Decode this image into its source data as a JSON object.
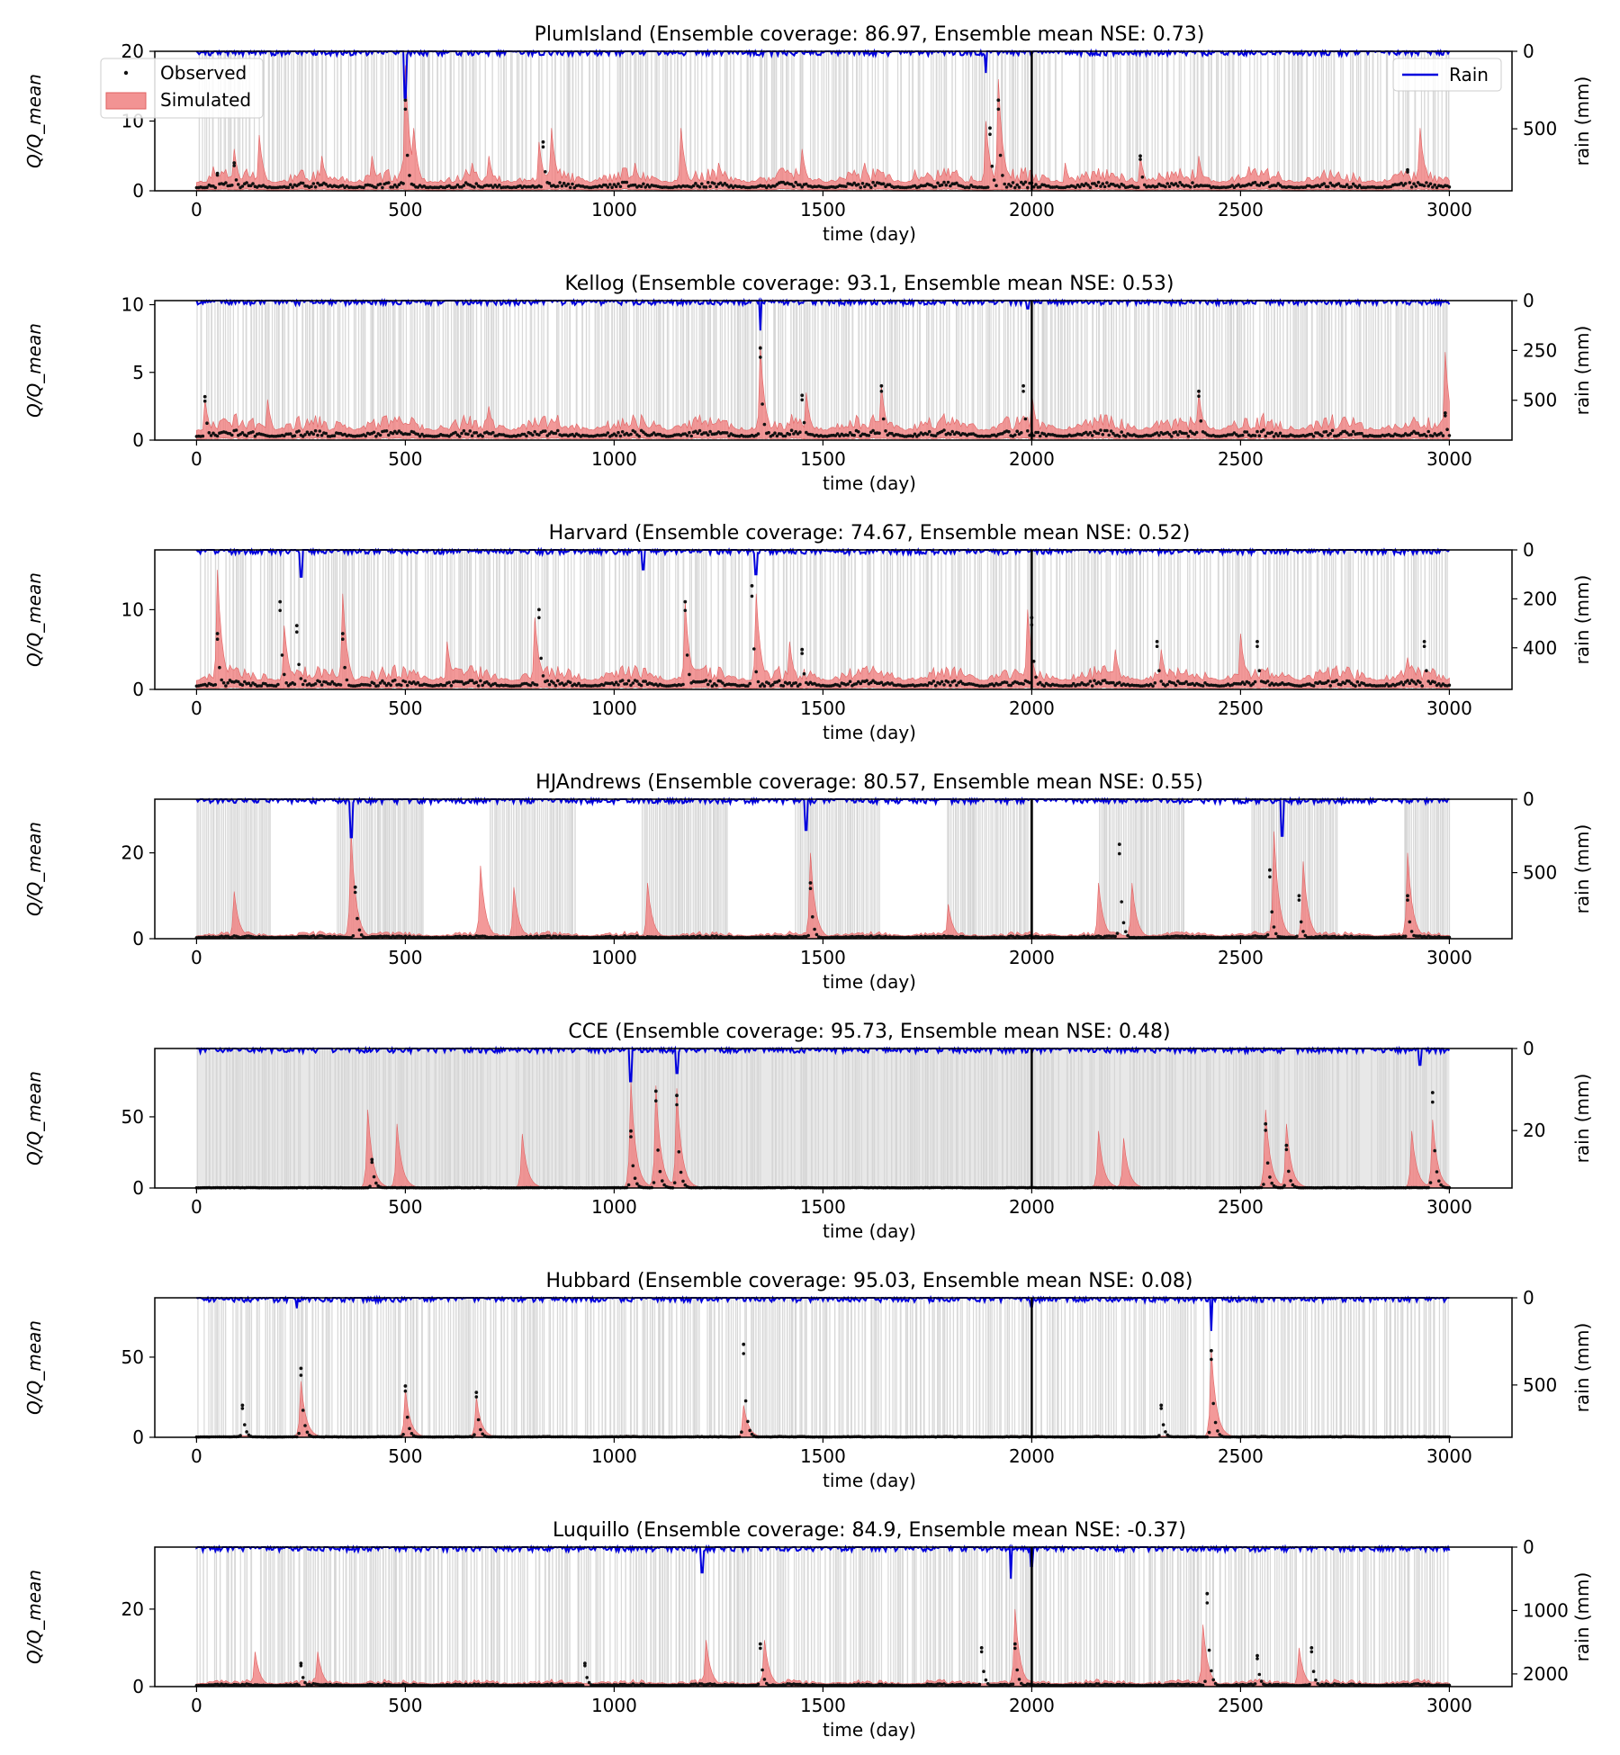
{
  "chart_data": [
    {
      "type": "line",
      "site": "PlumIsland",
      "title": "PlumIsland (Ensemble coverage: 86.97, Ensemble mean NSE: 0.73)",
      "xlabel": "time (day)",
      "ylabel": "Q/Q_mean",
      "ylabel2": "rain (mm)",
      "xlim": [
        -100,
        3150
      ],
      "xticks": [
        0,
        500,
        1000,
        1500,
        2000,
        2500,
        3000
      ],
      "ylim": [
        0,
        20
      ],
      "yticks": [
        0,
        10,
        20
      ],
      "y2lim_inverted": [
        0,
        900
      ],
      "y2ticks": [
        0,
        500
      ],
      "split_day": 2000,
      "legend": {
        "left": [
          "Observed",
          "Simulated"
        ],
        "right": [
          "Rain"
        ],
        "left_position": "upper left",
        "right_position": "upper right"
      },
      "grid": false,
      "flow_scale": 1.5,
      "sim_peaks": [
        [
          40,
          3.5
        ],
        [
          90,
          6
        ],
        [
          150,
          8
        ],
        [
          300,
          5
        ],
        [
          420,
          5
        ],
        [
          500,
          18
        ],
        [
          520,
          9
        ],
        [
          660,
          4
        ],
        [
          700,
          5
        ],
        [
          820,
          7
        ],
        [
          850,
          9
        ],
        [
          1050,
          4
        ],
        [
          1160,
          9
        ],
        [
          1250,
          4
        ],
        [
          1450,
          6
        ],
        [
          1600,
          4
        ],
        [
          1720,
          3
        ],
        [
          1890,
          10
        ],
        [
          1920,
          16
        ],
        [
          2080,
          4
        ],
        [
          2260,
          5
        ],
        [
          2400,
          5
        ],
        [
          2520,
          3.5
        ],
        [
          2700,
          3
        ],
        [
          2930,
          9
        ]
      ],
      "obs_peaks": [
        [
          50,
          2.5
        ],
        [
          90,
          4
        ],
        [
          500,
          13
        ],
        [
          830,
          7
        ],
        [
          1900,
          9
        ],
        [
          1920,
          13
        ],
        [
          2260,
          5
        ],
        [
          2900,
          3
        ]
      ],
      "rain_max": 900,
      "rain_peaks": [
        [
          500,
          300
        ],
        [
          1890,
          140
        ]
      ],
      "wet_fraction": 0.55
    },
    {
      "type": "line",
      "site": "Kellog",
      "title": "Kellog (Ensemble coverage: 93.1, Ensemble mean NSE: 0.53)",
      "xlabel": "time (day)",
      "ylabel": "Q/Q_mean",
      "ylabel2": "rain (mm)",
      "xlim": [
        -100,
        3150
      ],
      "xticks": [
        0,
        500,
        1000,
        1500,
        2000,
        2500,
        3000
      ],
      "ylim": [
        0,
        10.3
      ],
      "yticks": [
        0,
        5,
        10
      ],
      "y2lim_inverted": [
        0,
        700
      ],
      "y2ticks": [
        0,
        250,
        500
      ],
      "split_day": 2000,
      "flow_scale": 0.9,
      "sim_peaks": [
        [
          20,
          3
        ],
        [
          170,
          3
        ],
        [
          700,
          2.5
        ],
        [
          1350,
          7
        ],
        [
          1460,
          3.5
        ],
        [
          1640,
          4
        ],
        [
          2000,
          3.5
        ],
        [
          2400,
          3.5
        ],
        [
          2990,
          6.5
        ]
      ],
      "obs_peaks": [
        [
          20,
          3.2
        ],
        [
          1350,
          6.8
        ],
        [
          1450,
          3.3
        ],
        [
          1640,
          4
        ],
        [
          1980,
          4
        ],
        [
          2400,
          3.6
        ],
        [
          2990,
          2
        ]
      ],
      "rain_max": 700,
      "rain_peaks": [
        [
          1350,
          150
        ],
        [
          1990,
          40
        ]
      ],
      "wet_fraction": 0.72
    },
    {
      "type": "line",
      "site": "Harvard",
      "title": "Harvard (Ensemble coverage: 74.67, Ensemble mean NSE: 0.52)",
      "xlabel": "time (day)",
      "ylabel": "Q/Q_mean",
      "ylabel2": "rain (mm)",
      "xlim": [
        -100,
        3150
      ],
      "xticks": [
        0,
        500,
        1000,
        1500,
        2000,
        2500,
        3000
      ],
      "ylim": [
        0,
        17.5
      ],
      "yticks": [
        0,
        10
      ],
      "y2lim_inverted": [
        0,
        570
      ],
      "y2ticks": [
        0,
        200,
        400
      ],
      "split_day": 2000,
      "flow_scale": 1.4,
      "sim_peaks": [
        [
          50,
          15
        ],
        [
          210,
          8
        ],
        [
          350,
          12
        ],
        [
          600,
          6
        ],
        [
          810,
          9
        ],
        [
          1170,
          11
        ],
        [
          1340,
          12
        ],
        [
          1420,
          6
        ],
        [
          1990,
          10
        ],
        [
          2200,
          5
        ],
        [
          2310,
          5
        ],
        [
          2500,
          7
        ],
        [
          2900,
          4
        ]
      ],
      "obs_peaks": [
        [
          50,
          7
        ],
        [
          200,
          11
        ],
        [
          240,
          8
        ],
        [
          350,
          7
        ],
        [
          820,
          10
        ],
        [
          1170,
          11
        ],
        [
          1330,
          13
        ],
        [
          1450,
          5
        ],
        [
          2000,
          9
        ],
        [
          2300,
          6
        ],
        [
          2540,
          6
        ],
        [
          2940,
          6
        ]
      ],
      "rain_max": 570,
      "rain_peaks": [
        [
          250,
          110
        ],
        [
          1340,
          100
        ],
        [
          1070,
          80
        ]
      ],
      "wet_fraction": 0.6
    },
    {
      "type": "line",
      "site": "HJAndrews",
      "title": "HJAndrews (Ensemble coverage: 80.57, Ensemble mean NSE: 0.55)",
      "xlabel": "time (day)",
      "ylabel": "Q/Q_mean",
      "ylabel2": "rain (mm)",
      "xlim": [
        -100,
        3150
      ],
      "xticks": [
        0,
        500,
        1000,
        1500,
        2000,
        2500,
        3000
      ],
      "ylim": [
        0,
        32.5
      ],
      "yticks": [
        0,
        20
      ],
      "y2lim_inverted": [
        0,
        950
      ],
      "y2ticks": [
        0,
        500
      ],
      "split_day": 2000,
      "flow_scale": 0.8,
      "sim_peaks": [
        [
          90,
          11
        ],
        [
          370,
          25
        ],
        [
          680,
          17
        ],
        [
          760,
          12
        ],
        [
          1080,
          13
        ],
        [
          1470,
          20
        ],
        [
          1800,
          8
        ],
        [
          2160,
          13
        ],
        [
          2240,
          13
        ],
        [
          2580,
          25
        ],
        [
          2650,
          18
        ],
        [
          2900,
          20
        ]
      ],
      "obs_peaks": [
        [
          380,
          12
        ],
        [
          1470,
          13
        ],
        [
          2210,
          22
        ],
        [
          2570,
          16
        ],
        [
          2640,
          10
        ],
        [
          2900,
          10
        ]
      ],
      "rain_max": 950,
      "rain_peaks": [
        [
          370,
          260
        ],
        [
          1460,
          210
        ],
        [
          2600,
          250
        ]
      ],
      "wet_fraction": 0.4,
      "seasonal": true
    },
    {
      "type": "line",
      "site": "CCE",
      "title": "CCE (Ensemble coverage: 95.73, Ensemble mean NSE: 0.48)",
      "xlabel": "time (day)",
      "ylabel": "Q/Q_mean",
      "ylabel2": "rain (mm)",
      "xlim": [
        -100,
        3150
      ],
      "xticks": [
        0,
        500,
        1000,
        1500,
        2000,
        2500,
        3000
      ],
      "ylim": [
        0,
        98
      ],
      "yticks": [
        0,
        50
      ],
      "y2lim_inverted": [
        0,
        34
      ],
      "y2ticks": [
        0,
        20
      ],
      "split_day": 2000,
      "flow_scale": 0.4,
      "sim_peaks": [
        [
          410,
          55
        ],
        [
          480,
          45
        ],
        [
          780,
          38
        ],
        [
          1040,
          75
        ],
        [
          1100,
          72
        ],
        [
          1150,
          70
        ],
        [
          2160,
          40
        ],
        [
          2220,
          35
        ],
        [
          2560,
          55
        ],
        [
          2610,
          45
        ],
        [
          2910,
          40
        ],
        [
          2960,
          48
        ]
      ],
      "obs_peaks": [
        [
          420,
          20
        ],
        [
          1040,
          40
        ],
        [
          1100,
          68
        ],
        [
          1150,
          65
        ],
        [
          2560,
          45
        ],
        [
          2610,
          30
        ],
        [
          2960,
          67
        ]
      ],
      "rain_max": 34,
      "rain_peaks": [
        [
          1040,
          8
        ],
        [
          1150,
          6
        ],
        [
          2930,
          4
        ]
      ],
      "wet_fraction": 0.55
    },
    {
      "type": "line",
      "site": "Hubbard",
      "title": "Hubbard (Ensemble coverage: 95.03, Ensemble mean NSE: 0.08)",
      "xlabel": "time (day)",
      "ylabel": "Q/Q_mean",
      "ylabel2": "rain (mm)",
      "xlim": [
        -100,
        3150
      ],
      "xticks": [
        0,
        500,
        1000,
        1500,
        2000,
        2500,
        3000
      ],
      "ylim": [
        0,
        87
      ],
      "yticks": [
        0,
        50
      ],
      "y2lim_inverted": [
        0,
        800
      ],
      "y2ticks": [
        0,
        500
      ],
      "split_day": 2000,
      "flow_scale": 0.6,
      "sim_peaks": [
        [
          250,
          35
        ],
        [
          500,
          30
        ],
        [
          670,
          25
        ],
        [
          1310,
          20
        ],
        [
          2430,
          55
        ]
      ],
      "obs_peaks": [
        [
          110,
          20
        ],
        [
          250,
          43
        ],
        [
          500,
          32
        ],
        [
          670,
          28
        ],
        [
          1310,
          58
        ],
        [
          2430,
          54
        ],
        [
          2310,
          20
        ]
      ],
      "rain_max": 800,
      "rain_peaks": [
        [
          2430,
          190
        ],
        [
          240,
          60
        ],
        [
          2000,
          50
        ]
      ],
      "wet_fraction": 0.7
    },
    {
      "type": "line",
      "site": "Luquillo",
      "title": "Luquillo (Ensemble coverage: 84.9, Ensemble mean NSE: -0.37)",
      "xlabel": "time (day)",
      "ylabel": "Q/Q_mean",
      "ylabel2": "rain (mm)",
      "xlim": [
        -100,
        3150
      ],
      "xticks": [
        0,
        500,
        1000,
        1500,
        2000,
        2500,
        3000
      ],
      "ylim": [
        0,
        36
      ],
      "yticks": [
        0,
        20
      ],
      "y2lim_inverted": [
        0,
        2200
      ],
      "y2ticks": [
        0,
        1000,
        2000
      ],
      "split_day": 2000,
      "flow_scale": 0.9,
      "sim_peaks": [
        [
          140,
          9
        ],
        [
          290,
          9
        ],
        [
          1220,
          12
        ],
        [
          1360,
          12
        ],
        [
          1960,
          20
        ],
        [
          2410,
          16
        ],
        [
          2640,
          10
        ]
      ],
      "obs_peaks": [
        [
          250,
          6
        ],
        [
          930,
          6
        ],
        [
          1350,
          11
        ],
        [
          1880,
          10
        ],
        [
          1960,
          11
        ],
        [
          2420,
          24
        ],
        [
          2540,
          8
        ],
        [
          2670,
          10
        ]
      ],
      "rain_max": 2200,
      "rain_peaks": [
        [
          1210,
          400
        ],
        [
          1950,
          500
        ],
        [
          2000,
          300
        ]
      ],
      "wet_fraction": 0.65
    }
  ]
}
